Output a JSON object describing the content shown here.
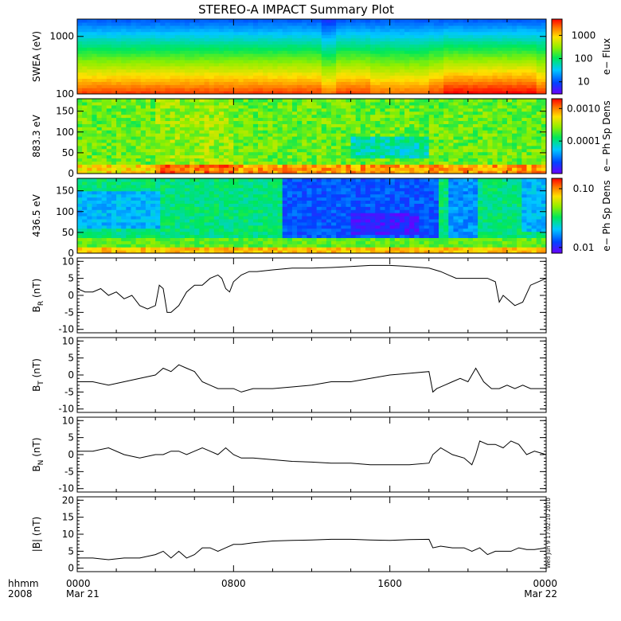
{
  "title": "STEREO-A IMPACT Summary Plot",
  "timestamp": "Wed Jun  9 17:02:10 2010",
  "x_axis": {
    "row1_labels": [
      "hhmm",
      "0000",
      "0800",
      "1600",
      "0000"
    ],
    "row2_labels": [
      "2008",
      "Mar 21",
      "",
      "",
      "Mar 22"
    ],
    "ticks_hours": [
      0,
      8,
      16,
      24
    ],
    "range_hours": [
      0,
      24
    ]
  },
  "colors": {
    "frame": "#000000",
    "line": "#000000",
    "background": "#ffffff"
  },
  "chart_data": [
    {
      "type": "heatmap",
      "ylabel": "SWEA (eV)",
      "y_scale": "log",
      "ylim": [
        100,
        2000
      ],
      "yticks": [
        "100",
        "1000"
      ],
      "colorbar_label": "e− Flux",
      "colorbar_ticks": [
        "10",
        "100",
        "1000"
      ],
      "colorbar_scale": "log",
      "colorbar_range": [
        3,
        5000
      ],
      "description_values": {
        "x_hours": [
          0,
          2,
          4,
          6,
          8,
          10,
          12,
          13,
          14,
          16,
          18,
          19,
          20,
          22,
          24
        ],
        "flux_at_100eV": [
          1200,
          1500,
          1400,
          1500,
          1600,
          1500,
          1400,
          900,
          1400,
          800,
          1000,
          2500,
          3500,
          3500,
          3000
        ],
        "flux_at_1000eV": [
          20,
          25,
          25,
          25,
          25,
          25,
          25,
          20,
          25,
          30,
          25,
          25,
          25,
          25,
          25
        ]
      }
    },
    {
      "type": "heatmap",
      "ylabel": "883.3 eV",
      "ylim": [
        0,
        180
      ],
      "yticks": [
        "0",
        "50",
        "100",
        "150"
      ],
      "colorbar_label": "e− Ph Sp Dens",
      "colorbar_ticks": [
        "0.0001",
        "0.0010"
      ],
      "colorbar_scale": "log",
      "colorbar_range": [
        1e-05,
        0.002
      ]
    },
    {
      "type": "heatmap",
      "ylabel": "436.5 eV",
      "ylim": [
        0,
        180
      ],
      "yticks": [
        "0",
        "50",
        "100",
        "150"
      ],
      "colorbar_label": "e− Ph Sp Dens",
      "colorbar_ticks": [
        "0.01",
        "0.10"
      ],
      "colorbar_scale": "log",
      "colorbar_range": [
        0.008,
        0.15
      ]
    },
    {
      "type": "line",
      "ylabel_main": "B",
      "ylabel_sub": "R",
      "ylabel_unit": " (nT)",
      "ylim": [
        -11,
        11
      ],
      "yticks": [
        "-10",
        "-5",
        "0",
        "5",
        "10"
      ],
      "x": [
        0,
        0.4,
        0.8,
        1.2,
        1.6,
        2.0,
        2.4,
        2.8,
        3.2,
        3.6,
        4.0,
        4.2,
        4.4,
        4.6,
        4.8,
        5.2,
        5.6,
        6.0,
        6.4,
        6.8,
        7.2,
        7.4,
        7.6,
        7.8,
        8.0,
        8.4,
        8.8,
        9.2,
        10,
        11,
        12,
        13,
        14,
        15,
        16,
        17,
        18,
        18.6,
        19.0,
        19.4,
        19.8,
        20.2,
        20.6,
        21.0,
        21.4,
        21.6,
        21.8,
        22.0,
        22.4,
        22.8,
        23.2,
        23.6,
        24
      ],
      "y": [
        2,
        1,
        1,
        2,
        0,
        1,
        -1,
        0,
        -3,
        -4,
        -3,
        3,
        2,
        -5,
        -5,
        -3,
        1,
        3,
        3,
        5,
        6,
        5,
        2,
        1,
        4,
        6,
        7,
        7,
        7.5,
        8,
        8,
        8.2,
        8.5,
        8.8,
        8.8,
        8.5,
        8,
        7,
        6,
        5,
        5,
        5,
        5,
        5,
        4,
        -2,
        0,
        -1,
        -3,
        -2,
        3,
        4,
        5
      ]
    },
    {
      "type": "line",
      "ylabel_main": "B",
      "ylabel_sub": "T",
      "ylabel_unit": " (nT)",
      "ylim": [
        -11,
        11
      ],
      "yticks": [
        "-10",
        "-5",
        "0",
        "5",
        "10"
      ],
      "x": [
        0,
        0.8,
        1.6,
        2.4,
        3.2,
        4.0,
        4.4,
        4.8,
        5.2,
        5.6,
        6.0,
        6.4,
        6.8,
        7.2,
        7.6,
        8.0,
        8.4,
        9.0,
        10,
        11,
        12,
        13,
        14,
        15,
        16,
        17,
        18,
        18.2,
        18.4,
        18.8,
        19.2,
        19.6,
        20.0,
        20.4,
        20.8,
        21.2,
        21.6,
        22.0,
        22.4,
        22.8,
        23.2,
        23.6,
        24
      ],
      "y": [
        -2,
        -2,
        -3,
        -2,
        -1,
        0,
        2,
        1,
        3,
        2,
        1,
        -2,
        -3,
        -4,
        -4,
        -4,
        -5,
        -4,
        -4,
        -3.5,
        -3,
        -2,
        -2,
        -1,
        0,
        0.5,
        1,
        -5,
        -4,
        -3,
        -2,
        -1,
        -2,
        2,
        -2,
        -4,
        -4,
        -3,
        -4,
        -3,
        -4,
        -4,
        -4
      ]
    },
    {
      "type": "line",
      "ylabel_main": "B",
      "ylabel_sub": "N",
      "ylabel_unit": " (nT)",
      "ylim": [
        -11,
        11
      ],
      "yticks": [
        "-10",
        "-5",
        "0",
        "5",
        "10"
      ],
      "x": [
        0,
        0.8,
        1.6,
        2.4,
        3.2,
        4.0,
        4.4,
        4.8,
        5.2,
        5.6,
        6.0,
        6.4,
        6.8,
        7.2,
        7.6,
        8.0,
        8.4,
        9.0,
        10,
        11,
        12,
        13,
        14,
        15,
        16,
        17,
        18,
        18.2,
        18.6,
        19.2,
        19.8,
        20.2,
        20.4,
        20.6,
        21.0,
        21.4,
        21.8,
        22.2,
        22.6,
        23.0,
        23.4,
        24
      ],
      "y": [
        1,
        1,
        2,
        0,
        -1,
        0,
        0,
        1,
        1,
        0,
        1,
        2,
        1,
        0,
        2,
        0,
        -1,
        -1,
        -1.5,
        -2,
        -2.2,
        -2.5,
        -2.5,
        -3,
        -3,
        -3,
        -2.5,
        0,
        2,
        0,
        -1,
        -3,
        0,
        4,
        3,
        3,
        2,
        4,
        3,
        0,
        1,
        0
      ]
    },
    {
      "type": "line",
      "ylabel_main": "|B|",
      "ylabel_sub": "",
      "ylabel_unit": " (nT)",
      "ylim": [
        -1,
        21
      ],
      "yticks": [
        "0",
        "5",
        "10",
        "15",
        "20"
      ],
      "x": [
        0,
        0.8,
        1.6,
        2.4,
        3.2,
        4.0,
        4.4,
        4.8,
        5.2,
        5.6,
        6.0,
        6.4,
        6.8,
        7.2,
        7.6,
        8.0,
        8.4,
        9.0,
        10,
        11,
        12,
        13,
        14,
        15,
        16,
        17,
        18,
        18.2,
        18.6,
        19.2,
        19.8,
        20.2,
        20.6,
        21.0,
        21.4,
        21.8,
        22.2,
        22.6,
        23.0,
        23.4,
        24
      ],
      "y": [
        3,
        3,
        2.5,
        3,
        3,
        4,
        5,
        3,
        5,
        3,
        4,
        6,
        6,
        5,
        6,
        7,
        7,
        7.5,
        8,
        8.2,
        8.3,
        8.5,
        8.5,
        8.3,
        8.2,
        8.4,
        8.5,
        6,
        6.5,
        6,
        6,
        5,
        6,
        4,
        5,
        5,
        5,
        6,
        5.5,
        5.5,
        6
      ]
    }
  ]
}
